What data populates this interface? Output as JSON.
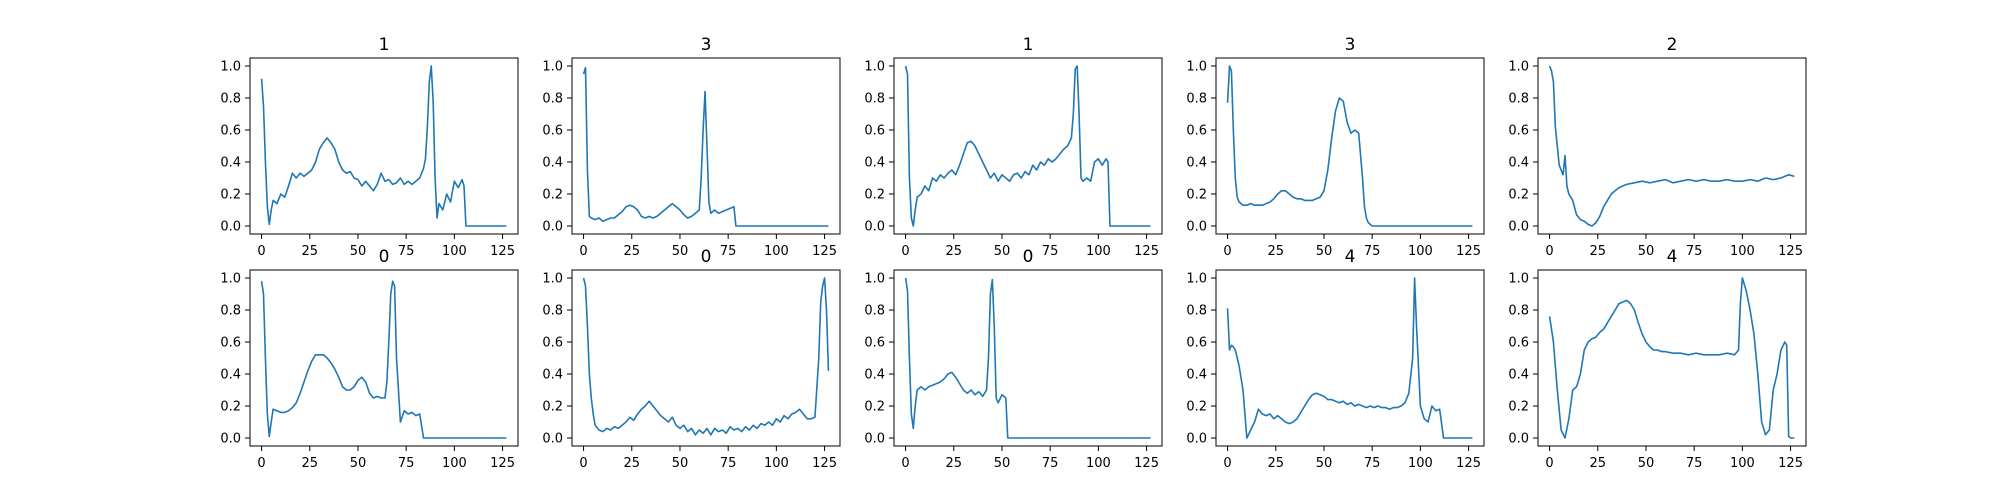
{
  "colors": {
    "line": "#1f77b4",
    "axes": "#000000",
    "background": "#ffffff"
  },
  "chart_data": [
    {
      "type": "line",
      "title": "1",
      "xlim": [
        -6,
        133
      ],
      "ylim": [
        -0.05,
        1.05
      ],
      "xticks": [
        0,
        25,
        50,
        75,
        100,
        125
      ],
      "yticks": [
        0.0,
        0.2,
        0.4,
        0.6,
        0.8,
        1.0
      ],
      "x": [
        0,
        1,
        2,
        3,
        4,
        5,
        6,
        8,
        10,
        12,
        14,
        16,
        18,
        20,
        22,
        24,
        26,
        28,
        30,
        32,
        34,
        36,
        38,
        40,
        42,
        44,
        46,
        48,
        50,
        52,
        54,
        56,
        58,
        60,
        62,
        64,
        66,
        68,
        70,
        72,
        74,
        76,
        78,
        80,
        82,
        84,
        85,
        86,
        87,
        88,
        89,
        90,
        91,
        92,
        94,
        96,
        98,
        100,
        102,
        104,
        105,
        106,
        110,
        115,
        120,
        125,
        127
      ],
      "y": [
        0.92,
        0.75,
        0.4,
        0.12,
        0.01,
        0.1,
        0.16,
        0.14,
        0.2,
        0.18,
        0.25,
        0.33,
        0.3,
        0.33,
        0.31,
        0.33,
        0.35,
        0.4,
        0.48,
        0.52,
        0.55,
        0.52,
        0.48,
        0.4,
        0.35,
        0.33,
        0.34,
        0.3,
        0.29,
        0.25,
        0.28,
        0.25,
        0.22,
        0.26,
        0.33,
        0.28,
        0.29,
        0.26,
        0.27,
        0.3,
        0.26,
        0.28,
        0.26,
        0.28,
        0.3,
        0.36,
        0.42,
        0.62,
        0.9,
        1.0,
        0.78,
        0.3,
        0.05,
        0.14,
        0.1,
        0.2,
        0.15,
        0.28,
        0.24,
        0.29,
        0.25,
        0.0,
        0.0,
        0.0,
        0.0,
        0.0,
        0.0
      ]
    },
    {
      "type": "line",
      "title": "3",
      "xlim": [
        -6,
        133
      ],
      "ylim": [
        -0.05,
        1.05
      ],
      "xticks": [
        0,
        25,
        50,
        75,
        100,
        125
      ],
      "yticks": [
        0.0,
        0.2,
        0.4,
        0.6,
        0.8,
        1.0
      ],
      "x": [
        0,
        1,
        2,
        3,
        4,
        6,
        8,
        10,
        12,
        14,
        16,
        18,
        20,
        22,
        24,
        26,
        28,
        30,
        32,
        34,
        36,
        38,
        40,
        42,
        44,
        46,
        48,
        50,
        52,
        54,
        56,
        58,
        60,
        61,
        62,
        63,
        64,
        65,
        66,
        68,
        70,
        72,
        74,
        76,
        78,
        79,
        80,
        85,
        90,
        100,
        110,
        120,
        127
      ],
      "y": [
        0.95,
        0.99,
        0.35,
        0.06,
        0.05,
        0.04,
        0.05,
        0.03,
        0.04,
        0.05,
        0.05,
        0.07,
        0.09,
        0.12,
        0.13,
        0.12,
        0.1,
        0.06,
        0.05,
        0.06,
        0.05,
        0.06,
        0.08,
        0.1,
        0.12,
        0.14,
        0.12,
        0.1,
        0.07,
        0.05,
        0.06,
        0.08,
        0.1,
        0.3,
        0.6,
        0.84,
        0.5,
        0.15,
        0.08,
        0.1,
        0.08,
        0.09,
        0.1,
        0.11,
        0.12,
        0.0,
        0.0,
        0.0,
        0.0,
        0.0,
        0.0,
        0.0,
        0.0
      ]
    },
    {
      "type": "line",
      "title": "1",
      "xlim": [
        -6,
        133
      ],
      "ylim": [
        -0.05,
        1.05
      ],
      "xticks": [
        0,
        25,
        50,
        75,
        100,
        125
      ],
      "yticks": [
        0.0,
        0.2,
        0.4,
        0.6,
        0.8,
        1.0
      ],
      "x": [
        0,
        1,
        2,
        3,
        4,
        5,
        6,
        8,
        10,
        12,
        14,
        16,
        18,
        20,
        22,
        24,
        26,
        28,
        30,
        32,
        34,
        36,
        38,
        40,
        42,
        44,
        46,
        48,
        50,
        52,
        54,
        56,
        58,
        60,
        62,
        64,
        66,
        68,
        70,
        72,
        74,
        76,
        78,
        80,
        82,
        84,
        86,
        87,
        88,
        89,
        90,
        91,
        92,
        94,
        96,
        98,
        100,
        102,
        104,
        105,
        106,
        110,
        115,
        120,
        125,
        127
      ],
      "y": [
        1.0,
        0.95,
        0.3,
        0.05,
        0.0,
        0.1,
        0.18,
        0.2,
        0.25,
        0.22,
        0.3,
        0.28,
        0.32,
        0.3,
        0.33,
        0.35,
        0.32,
        0.38,
        0.45,
        0.52,
        0.53,
        0.5,
        0.45,
        0.4,
        0.35,
        0.3,
        0.33,
        0.28,
        0.32,
        0.3,
        0.28,
        0.32,
        0.33,
        0.3,
        0.34,
        0.32,
        0.38,
        0.35,
        0.4,
        0.38,
        0.42,
        0.4,
        0.42,
        0.45,
        0.48,
        0.5,
        0.55,
        0.7,
        0.98,
        1.0,
        0.7,
        0.3,
        0.28,
        0.3,
        0.28,
        0.4,
        0.42,
        0.38,
        0.42,
        0.4,
        0.0,
        0.0,
        0.0,
        0.0,
        0.0,
        0.0
      ]
    },
    {
      "type": "line",
      "title": "3",
      "xlim": [
        -6,
        133
      ],
      "ylim": [
        -0.05,
        1.05
      ],
      "xticks": [
        0,
        25,
        50,
        75,
        100,
        125
      ],
      "yticks": [
        0.0,
        0.2,
        0.4,
        0.6,
        0.8,
        1.0
      ],
      "x": [
        0,
        1,
        2,
        3,
        4,
        5,
        6,
        8,
        10,
        12,
        14,
        16,
        18,
        20,
        22,
        24,
        26,
        28,
        30,
        32,
        34,
        36,
        38,
        40,
        42,
        44,
        46,
        48,
        50,
        52,
        54,
        56,
        58,
        60,
        62,
        64,
        66,
        68,
        70,
        71,
        72,
        73,
        74,
        75,
        80,
        90,
        100,
        110,
        120,
        127
      ],
      "y": [
        0.77,
        1.0,
        0.97,
        0.6,
        0.3,
        0.18,
        0.15,
        0.13,
        0.13,
        0.14,
        0.13,
        0.13,
        0.13,
        0.14,
        0.15,
        0.17,
        0.2,
        0.22,
        0.22,
        0.2,
        0.18,
        0.17,
        0.17,
        0.16,
        0.16,
        0.16,
        0.17,
        0.18,
        0.22,
        0.35,
        0.55,
        0.72,
        0.8,
        0.78,
        0.65,
        0.58,
        0.6,
        0.58,
        0.3,
        0.12,
        0.05,
        0.02,
        0.01,
        0.0,
        0.0,
        0.0,
        0.0,
        0.0,
        0.0,
        0.0
      ]
    },
    {
      "type": "line",
      "title": "2",
      "xlim": [
        -6,
        133
      ],
      "ylim": [
        -0.05,
        1.05
      ],
      "xticks": [
        0,
        25,
        50,
        75,
        100,
        125
      ],
      "yticks": [
        0.0,
        0.2,
        0.4,
        0.6,
        0.8,
        1.0
      ],
      "x": [
        0,
        1,
        2,
        3,
        4,
        5,
        6,
        7,
        8,
        9,
        10,
        12,
        14,
        16,
        18,
        20,
        22,
        24,
        26,
        28,
        30,
        32,
        34,
        36,
        38,
        40,
        44,
        48,
        52,
        56,
        60,
        64,
        68,
        72,
        76,
        80,
        84,
        88,
        92,
        96,
        100,
        104,
        108,
        112,
        116,
        120,
        124,
        127
      ],
      "y": [
        1.0,
        0.97,
        0.9,
        0.62,
        0.5,
        0.38,
        0.35,
        0.32,
        0.44,
        0.25,
        0.2,
        0.16,
        0.07,
        0.04,
        0.03,
        0.01,
        0.0,
        0.02,
        0.06,
        0.12,
        0.16,
        0.2,
        0.22,
        0.24,
        0.25,
        0.26,
        0.27,
        0.28,
        0.27,
        0.28,
        0.29,
        0.27,
        0.28,
        0.29,
        0.28,
        0.29,
        0.28,
        0.28,
        0.29,
        0.28,
        0.28,
        0.29,
        0.28,
        0.3,
        0.29,
        0.3,
        0.32,
        0.31
      ]
    },
    {
      "type": "line",
      "title": "0",
      "xlim": [
        -6,
        133
      ],
      "ylim": [
        -0.05,
        1.05
      ],
      "xticks": [
        0,
        25,
        50,
        75,
        100,
        125
      ],
      "yticks": [
        0.0,
        0.2,
        0.4,
        0.6,
        0.8,
        1.0
      ],
      "x": [
        0,
        1,
        2,
        3,
        4,
        5,
        6,
        8,
        10,
        12,
        14,
        16,
        18,
        20,
        22,
        24,
        26,
        28,
        30,
        32,
        34,
        36,
        38,
        40,
        42,
        44,
        46,
        48,
        50,
        52,
        54,
        56,
        58,
        60,
        62,
        64,
        65,
        66,
        67,
        68,
        69,
        70,
        72,
        74,
        76,
        78,
        80,
        82,
        84,
        90,
        100,
        110,
        120,
        127
      ],
      "y": [
        0.98,
        0.9,
        0.5,
        0.15,
        0.01,
        0.1,
        0.18,
        0.17,
        0.16,
        0.16,
        0.17,
        0.19,
        0.22,
        0.28,
        0.35,
        0.42,
        0.48,
        0.52,
        0.52,
        0.52,
        0.5,
        0.47,
        0.43,
        0.38,
        0.32,
        0.3,
        0.3,
        0.32,
        0.36,
        0.38,
        0.35,
        0.28,
        0.25,
        0.26,
        0.25,
        0.25,
        0.35,
        0.6,
        0.9,
        0.98,
        0.95,
        0.5,
        0.1,
        0.17,
        0.15,
        0.16,
        0.14,
        0.15,
        0.0,
        0.0,
        0.0,
        0.0,
        0.0,
        0.0
      ]
    },
    {
      "type": "line",
      "title": "0",
      "xlim": [
        -6,
        133
      ],
      "ylim": [
        -0.05,
        1.05
      ],
      "xticks": [
        0,
        25,
        50,
        75,
        100,
        125
      ],
      "yticks": [
        0.0,
        0.2,
        0.4,
        0.6,
        0.8,
        1.0
      ],
      "x": [
        0,
        1,
        2,
        3,
        4,
        5,
        6,
        8,
        10,
        12,
        14,
        16,
        18,
        20,
        22,
        24,
        26,
        28,
        30,
        32,
        34,
        36,
        38,
        40,
        42,
        44,
        46,
        48,
        50,
        52,
        54,
        56,
        58,
        60,
        62,
        64,
        66,
        68,
        70,
        72,
        74,
        76,
        78,
        80,
        82,
        84,
        86,
        88,
        90,
        92,
        94,
        96,
        98,
        100,
        102,
        104,
        106,
        108,
        110,
        112,
        114,
        116,
        118,
        120,
        122,
        123,
        124,
        125,
        126,
        127
      ],
      "y": [
        1.0,
        0.95,
        0.7,
        0.4,
        0.25,
        0.15,
        0.08,
        0.05,
        0.04,
        0.06,
        0.05,
        0.07,
        0.06,
        0.08,
        0.1,
        0.13,
        0.11,
        0.15,
        0.18,
        0.2,
        0.23,
        0.2,
        0.17,
        0.14,
        0.12,
        0.1,
        0.13,
        0.08,
        0.06,
        0.08,
        0.04,
        0.06,
        0.02,
        0.05,
        0.03,
        0.06,
        0.02,
        0.06,
        0.04,
        0.05,
        0.03,
        0.07,
        0.05,
        0.06,
        0.04,
        0.07,
        0.05,
        0.08,
        0.06,
        0.09,
        0.08,
        0.1,
        0.08,
        0.12,
        0.1,
        0.14,
        0.12,
        0.15,
        0.16,
        0.18,
        0.15,
        0.12,
        0.12,
        0.13,
        0.5,
        0.85,
        0.95,
        1.0,
        0.8,
        0.42
      ]
    },
    {
      "type": "line",
      "title": "0",
      "xlim": [
        -6,
        133
      ],
      "ylim": [
        -0.05,
        1.05
      ],
      "xticks": [
        0,
        25,
        50,
        75,
        100,
        125
      ],
      "yticks": [
        0.0,
        0.2,
        0.4,
        0.6,
        0.8,
        1.0
      ],
      "x": [
        0,
        1,
        2,
        3,
        4,
        5,
        6,
        8,
        10,
        12,
        14,
        16,
        18,
        20,
        22,
        24,
        26,
        28,
        30,
        32,
        34,
        36,
        38,
        40,
        42,
        43,
        44,
        45,
        46,
        47,
        48,
        50,
        52,
        53,
        54,
        60,
        70,
        80,
        90,
        100,
        110,
        120,
        127
      ],
      "y": [
        1.0,
        0.92,
        0.5,
        0.15,
        0.06,
        0.2,
        0.3,
        0.32,
        0.3,
        0.32,
        0.33,
        0.34,
        0.35,
        0.37,
        0.4,
        0.41,
        0.38,
        0.34,
        0.3,
        0.28,
        0.3,
        0.27,
        0.29,
        0.26,
        0.3,
        0.5,
        0.9,
        0.99,
        0.7,
        0.25,
        0.22,
        0.27,
        0.25,
        0.0,
        0.0,
        0.0,
        0.0,
        0.0,
        0.0,
        0.0,
        0.0,
        0.0,
        0.0
      ]
    },
    {
      "type": "line",
      "title": "4",
      "xlim": [
        -6,
        133
      ],
      "ylim": [
        -0.05,
        1.05
      ],
      "xticks": [
        0,
        25,
        50,
        75,
        100,
        125
      ],
      "yticks": [
        0.0,
        0.2,
        0.4,
        0.6,
        0.8,
        1.0
      ],
      "x": [
        0,
        1,
        2,
        3,
        4,
        5,
        6,
        8,
        10,
        12,
        14,
        16,
        18,
        20,
        22,
        24,
        26,
        28,
        30,
        32,
        34,
        36,
        38,
        40,
        42,
        44,
        46,
        48,
        50,
        52,
        54,
        56,
        58,
        60,
        62,
        64,
        66,
        68,
        70,
        72,
        74,
        76,
        78,
        80,
        82,
        84,
        86,
        88,
        90,
        92,
        94,
        96,
        97,
        98,
        99,
        100,
        102,
        104,
        106,
        108,
        110,
        112,
        114,
        116,
        120,
        127
      ],
      "y": [
        0.81,
        0.55,
        0.58,
        0.57,
        0.55,
        0.5,
        0.45,
        0.3,
        0.0,
        0.05,
        0.1,
        0.18,
        0.15,
        0.14,
        0.15,
        0.12,
        0.14,
        0.12,
        0.1,
        0.09,
        0.1,
        0.12,
        0.16,
        0.2,
        0.24,
        0.27,
        0.28,
        0.27,
        0.26,
        0.24,
        0.24,
        0.23,
        0.22,
        0.23,
        0.21,
        0.22,
        0.2,
        0.21,
        0.2,
        0.19,
        0.2,
        0.19,
        0.2,
        0.19,
        0.19,
        0.18,
        0.19,
        0.19,
        0.2,
        0.22,
        0.28,
        0.5,
        1.0,
        0.7,
        0.45,
        0.2,
        0.12,
        0.1,
        0.2,
        0.17,
        0.18,
        0.0,
        0.0,
        0.0,
        0.0,
        0.0
      ]
    },
    {
      "type": "line",
      "title": "4",
      "xlim": [
        -6,
        133
      ],
      "ylim": [
        -0.05,
        1.05
      ],
      "xticks": [
        0,
        25,
        50,
        75,
        100,
        125
      ],
      "yticks": [
        0.0,
        0.2,
        0.4,
        0.6,
        0.8,
        1.0
      ],
      "x": [
        0,
        2,
        4,
        6,
        8,
        10,
        12,
        14,
        16,
        18,
        20,
        22,
        24,
        26,
        28,
        30,
        32,
        34,
        36,
        38,
        40,
        42,
        44,
        46,
        48,
        50,
        52,
        54,
        56,
        58,
        60,
        64,
        68,
        72,
        76,
        80,
        84,
        88,
        92,
        96,
        98,
        99,
        100,
        102,
        104,
        106,
        108,
        110,
        112,
        114,
        116,
        118,
        120,
        122,
        123,
        124,
        125,
        126,
        127
      ],
      "y": [
        0.76,
        0.6,
        0.3,
        0.05,
        0.0,
        0.12,
        0.3,
        0.32,
        0.4,
        0.55,
        0.6,
        0.62,
        0.63,
        0.66,
        0.68,
        0.72,
        0.76,
        0.8,
        0.84,
        0.85,
        0.86,
        0.84,
        0.8,
        0.72,
        0.65,
        0.6,
        0.57,
        0.55,
        0.55,
        0.54,
        0.54,
        0.53,
        0.53,
        0.52,
        0.53,
        0.52,
        0.52,
        0.52,
        0.53,
        0.52,
        0.55,
        0.85,
        1.0,
        0.92,
        0.8,
        0.65,
        0.4,
        0.1,
        0.02,
        0.05,
        0.3,
        0.4,
        0.55,
        0.6,
        0.58,
        0.01,
        0.0,
        0.0,
        0.0
      ]
    }
  ]
}
